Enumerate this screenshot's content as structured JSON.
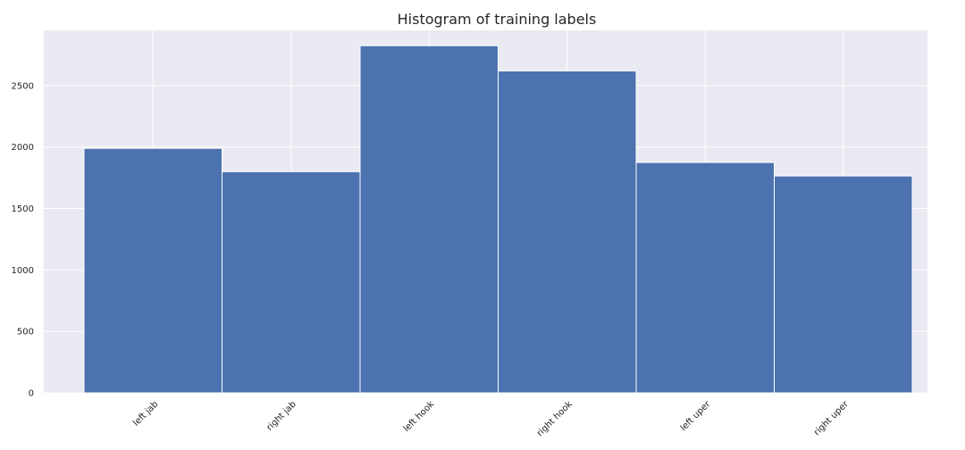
{
  "chart_data": {
    "type": "bar",
    "title": "Histogram of training labels",
    "xlabel": "",
    "ylabel": "",
    "categories": [
      "left jab",
      "right jab",
      "left hook",
      "right hook",
      "left uper",
      "right uper"
    ],
    "values": [
      1990,
      1800,
      2825,
      2620,
      1875,
      1765
    ],
    "ylim": [
      0,
      2950
    ],
    "yticks": [
      0,
      500,
      1000,
      1500,
      2000,
      2500
    ],
    "grid": true,
    "colors": {
      "bar": "#4c72b0",
      "plot_background": "#eaeaf2",
      "grid": "#ffffff",
      "text": "#262626"
    }
  }
}
